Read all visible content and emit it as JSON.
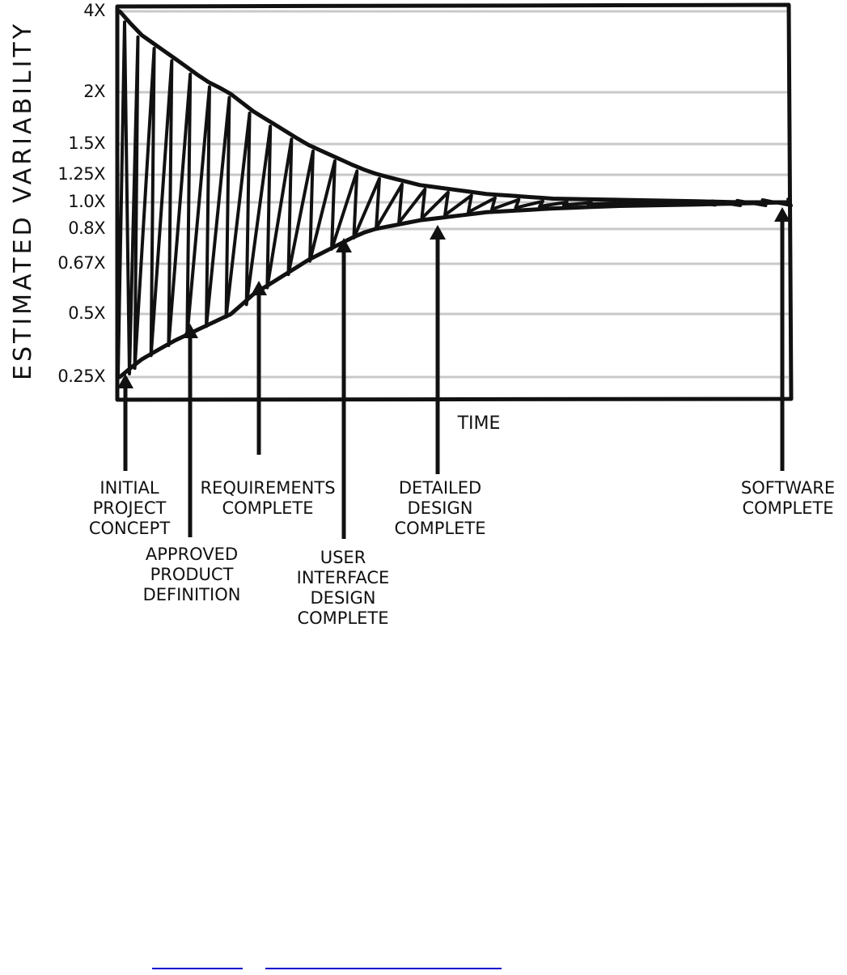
{
  "chart_data": {
    "type": "line",
    "ylabel": "ESTIMATED VARIABILITY",
    "xlabel": "TIME",
    "yscale": "log",
    "y_ticks": [
      {
        "value": 4,
        "label": "4X"
      },
      {
        "value": 2,
        "label": "2X"
      },
      {
        "value": 1.5,
        "label": "1.5X"
      },
      {
        "value": 1.25,
        "label": "1.25X"
      },
      {
        "value": 1.0,
        "label": "1.0X"
      },
      {
        "value": 0.8,
        "label": "0.8X"
      },
      {
        "value": 0.67,
        "label": "0.67X"
      },
      {
        "value": 0.5,
        "label": "0.5X"
      },
      {
        "value": 0.25,
        "label": "0.25X"
      }
    ],
    "ylim": [
      0.25,
      4
    ],
    "grid": true,
    "series": [
      {
        "x": [
          0,
          0.03,
          0.08,
          0.13,
          0.2,
          0.28,
          0.36,
          0.45,
          0.55,
          0.65,
          0.75,
          0.85,
          0.93,
          1.0
        ],
        "values": [
          4.0,
          3.3,
          2.7,
          2.2,
          1.8,
          1.5,
          1.3,
          1.15,
          1.07,
          1.03,
          1.02,
          1.01,
          1.0,
          1.0
        ]
      },
      {
        "x": [
          0,
          0.03,
          0.08,
          0.13,
          0.2,
          0.28,
          0.36,
          0.45,
          0.55,
          0.65,
          0.75,
          0.85,
          0.93,
          1.0
        ],
        "values": [
          0.25,
          0.3,
          0.37,
          0.44,
          0.56,
          0.68,
          0.78,
          0.86,
          0.92,
          0.95,
          0.97,
          0.98,
          0.99,
          1.0
        ]
      }
    ],
    "milestones": [
      {
        "label_lines": [
          "INITIAL",
          "PROJECT",
          "CONCEPT"
        ],
        "x": 0.0
      },
      {
        "label_lines": [
          "APPROVED",
          "PRODUCT",
          "DEFINITION"
        ],
        "x": 0.1
      },
      {
        "label_lines": [
          "REQUIREMENTS",
          "COMPLETE"
        ],
        "x": 0.2
      },
      {
        "label_lines": [
          "USER",
          "INTERFACE",
          "DESIGN",
          "COMPLETE"
        ],
        "x": 0.33
      },
      {
        "label_lines": [
          "DETAILED",
          "DESIGN",
          "COMPLETE"
        ],
        "x": 0.48
      },
      {
        "label_lines": [
          "SOFTWARE",
          "COMPLETE"
        ],
        "x": 1.0
      }
    ]
  },
  "footer": {
    "links": [
      {
        "name": "footer-link-1"
      },
      {
        "name": "footer-link-2"
      }
    ]
  }
}
